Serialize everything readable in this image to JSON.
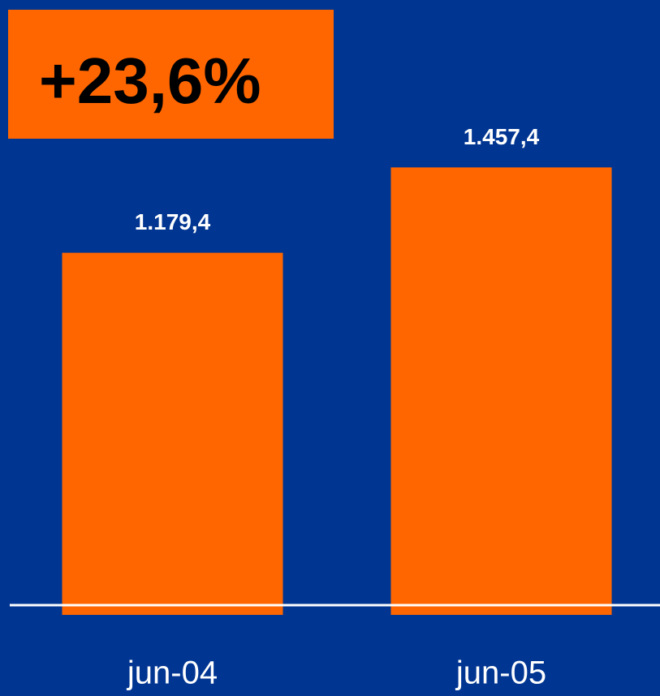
{
  "chart_data": {
    "type": "bar",
    "annotation": "+23,6%",
    "categories": [
      "jun-04",
      "jun-05"
    ],
    "values": [
      1179.4,
      1457.4
    ],
    "value_labels": [
      "1.179,4",
      "1.457,4"
    ],
    "color": "#ff6600"
  }
}
